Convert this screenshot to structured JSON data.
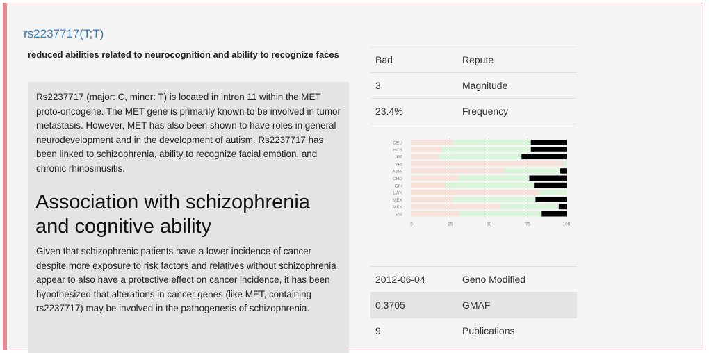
{
  "snp": {
    "title": "rs2237717(T;T)",
    "summary": "reduced abilities related to neurocognition and ability to recognize faces",
    "description": "Rs2237717 (major: C, minor: T) is located in intron 11 within the MET proto-oncogene. The MET gene is primarily known to be involved in tumor metastasis. However, MET has also been shown to have roles in general neurodevelopment and in the development of autism. Rs2237717 has been linked to schizophrenia, ability to recognize facial emotion, and chronic rhinosinusitis.",
    "heading": "Association with schizophrenia and cognitive ability",
    "description2": "Given that schizophrenic patients have a lower incidence of cancer despite more exposure to risk factors and relatives without schizophrenia appear to also have a protective effect on cancer incidence, it has been hypothesized that alterations in cancer genes (like MET, containing rs2237717) may be involved in the pathogenesis of schizophrenia."
  },
  "properties": [
    {
      "value": "Bad",
      "label": "Repute"
    },
    {
      "value": "3",
      "label": "Magnitude"
    },
    {
      "value": "23.4%",
      "label": "Frequency"
    }
  ],
  "properties2": [
    {
      "value": "2012-06-04",
      "label": "Geno Modified"
    },
    {
      "value": "0.3705",
      "label": "GMAF"
    },
    {
      "value": "9",
      "label": "Publications"
    }
  ],
  "colors": {
    "cc": "#f6e2d8",
    "ct": "#d9f5d9",
    "tt": "#000000"
  },
  "chart_data": {
    "type": "bar",
    "stacked": true,
    "orientation": "horizontal",
    "categories": [
      "CEU",
      "HCB",
      "JPT",
      "YRI",
      "ASW",
      "CHD",
      "GIH",
      "LWK",
      "MEX",
      "MKK",
      "TSI"
    ],
    "series": [
      {
        "values": [
          27,
          20,
          18,
          98,
          60,
          30,
          22,
          82,
          27,
          58,
          31
        ]
      },
      {
        "values": [
          50,
          57,
          53,
          2,
          36,
          46,
          57,
          18,
          53,
          37,
          53
        ]
      },
      {
        "values": [
          23,
          23,
          29,
          0,
          4,
          24,
          21,
          0,
          20,
          5,
          16
        ]
      }
    ],
    "xticks": [
      "0",
      "25",
      "50",
      "75",
      "100"
    ],
    "xlim": [
      0,
      100
    ],
    "grid": true
  }
}
